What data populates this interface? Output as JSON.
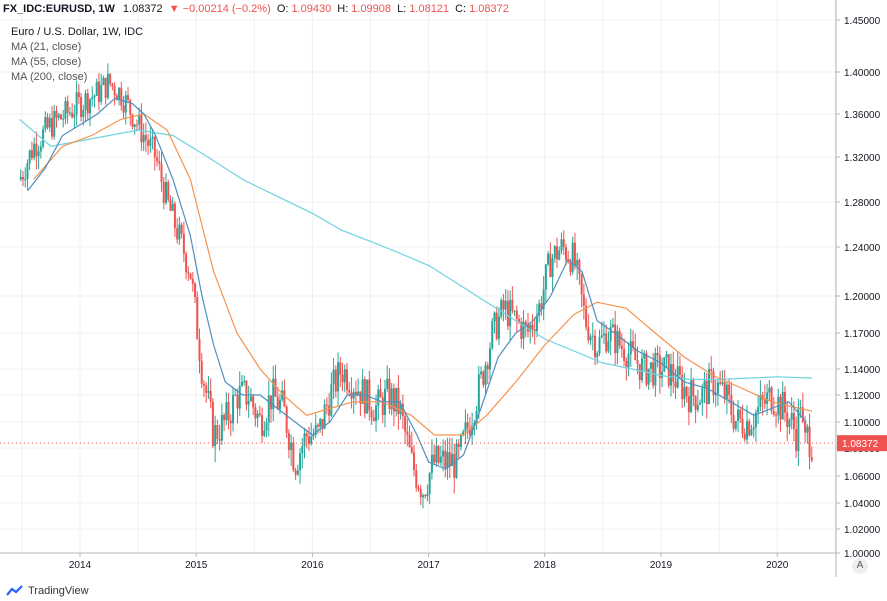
{
  "header": {
    "symbol": "FX_IDC:EURUSD, 1W",
    "price": "1.08372",
    "change": "▼ −0.00214 (−0.2%)",
    "open_label": "O:",
    "open": "1.09430",
    "high_label": "H:",
    "high": "1.09908",
    "low_label": "L:",
    "low": "1.08121",
    "close_label": "C:",
    "close": "1.08372"
  },
  "legend": {
    "title": "Euro / U.S. Dollar, 1W, IDC",
    "ma1": "MA (21, close)",
    "ma2": "MA (55, close)",
    "ma3": "MA (200, close)"
  },
  "brand": "TradingView",
  "auto_button": "A",
  "colors": {
    "up": "#26a69a",
    "down": "#ef5350",
    "ma21": "#4f8fc0",
    "ma55": "#f7934e",
    "ma200": "#6fd3e0",
    "grid": "#eef0f3",
    "axis": "#b2b5be",
    "badge": "#ef5350"
  },
  "chart_data": {
    "type": "candlestick",
    "title": "Euro / U.S. Dollar, 1W, IDC",
    "ylim": [
      1.0,
      1.45
    ],
    "y_ticks": [
      "1.45000",
      "1.40000",
      "1.36000",
      "1.32000",
      "1.28000",
      "1.24000",
      "1.20000",
      "1.17000",
      "1.14000",
      "1.12000",
      "1.10000",
      "1.08000",
      "1.06000",
      "1.04000",
      "1.02000",
      "1.00000"
    ],
    "x_ticks": [
      "2014",
      "2014",
      "2015",
      "2016",
      "2017",
      "2018",
      "2019",
      "2020"
    ],
    "x_tick_years": [
      2014.0,
      2015.0,
      2016.0,
      2017.0,
      2018.0,
      2019.0,
      2020.0
    ],
    "x_tick_labels": [
      "2014",
      "2015",
      "2016",
      "2017",
      "2018",
      "2019",
      "2020"
    ],
    "xlim": [
      2013.48,
      2020.45
    ],
    "last_price_label": "1.08372",
    "last_price": 1.08372,
    "price_path": [
      [
        2013.48,
        1.3
      ],
      [
        2013.6,
        1.33
      ],
      [
        2013.75,
        1.35
      ],
      [
        2013.88,
        1.36
      ],
      [
        2014.0,
        1.37
      ],
      [
        2014.15,
        1.38
      ],
      [
        2014.25,
        1.39
      ],
      [
        2014.35,
        1.38
      ],
      [
        2014.45,
        1.36
      ],
      [
        2014.55,
        1.34
      ],
      [
        2014.65,
        1.32
      ],
      [
        2014.75,
        1.28
      ],
      [
        2014.85,
        1.25
      ],
      [
        2014.95,
        1.22
      ],
      [
        2015.05,
        1.14
      ],
      [
        2015.15,
        1.09
      ],
      [
        2015.25,
        1.1
      ],
      [
        2015.35,
        1.12
      ],
      [
        2015.45,
        1.12
      ],
      [
        2015.55,
        1.1
      ],
      [
        2015.65,
        1.12
      ],
      [
        2015.75,
        1.11
      ],
      [
        2015.85,
        1.07
      ],
      [
        2015.95,
        1.09
      ],
      [
        2016.05,
        1.09
      ],
      [
        2016.15,
        1.12
      ],
      [
        2016.25,
        1.14
      ],
      [
        2016.35,
        1.13
      ],
      [
        2016.45,
        1.12
      ],
      [
        2016.55,
        1.11
      ],
      [
        2016.65,
        1.12
      ],
      [
        2016.75,
        1.11
      ],
      [
        2016.85,
        1.07
      ],
      [
        2016.95,
        1.05
      ],
      [
        2017.05,
        1.07
      ],
      [
        2017.15,
        1.07
      ],
      [
        2017.25,
        1.07
      ],
      [
        2017.35,
        1.1
      ],
      [
        2017.45,
        1.13
      ],
      [
        2017.55,
        1.17
      ],
      [
        2017.65,
        1.19
      ],
      [
        2017.75,
        1.18
      ],
      [
        2017.85,
        1.17
      ],
      [
        2017.95,
        1.19
      ],
      [
        2018.05,
        1.23
      ],
      [
        2018.15,
        1.24
      ],
      [
        2018.25,
        1.23
      ],
      [
        2018.35,
        1.18
      ],
      [
        2018.45,
        1.16
      ],
      [
        2018.55,
        1.17
      ],
      [
        2018.65,
        1.16
      ],
      [
        2018.75,
        1.15
      ],
      [
        2018.85,
        1.14
      ],
      [
        2018.95,
        1.14
      ],
      [
        2019.05,
        1.14
      ],
      [
        2019.15,
        1.13
      ],
      [
        2019.25,
        1.12
      ],
      [
        2019.35,
        1.12
      ],
      [
        2019.45,
        1.13
      ],
      [
        2019.55,
        1.12
      ],
      [
        2019.65,
        1.1
      ],
      [
        2019.75,
        1.1
      ],
      [
        2019.85,
        1.11
      ],
      [
        2019.95,
        1.12
      ],
      [
        2020.05,
        1.11
      ],
      [
        2020.12,
        1.1
      ],
      [
        2020.17,
        1.09
      ],
      [
        2020.2,
        1.12
      ],
      [
        2020.23,
        1.08
      ],
      [
        2020.26,
        1.09
      ],
      [
        2020.3,
        1.08372
      ]
    ],
    "ma_21": [
      [
        2013.55,
        1.29
      ],
      [
        2013.7,
        1.31
      ],
      [
        2013.85,
        1.34
      ],
      [
        2014.0,
        1.35
      ],
      [
        2014.15,
        1.36
      ],
      [
        2014.3,
        1.375
      ],
      [
        2014.45,
        1.37
      ],
      [
        2014.55,
        1.36
      ],
      [
        2014.65,
        1.34
      ],
      [
        2014.8,
        1.3
      ],
      [
        2014.95,
        1.25
      ],
      [
        2015.05,
        1.2
      ],
      [
        2015.15,
        1.16
      ],
      [
        2015.25,
        1.13
      ],
      [
        2015.4,
        1.12
      ],
      [
        2015.55,
        1.12
      ],
      [
        2015.7,
        1.11
      ],
      [
        2015.85,
        1.1
      ],
      [
        2016.0,
        1.09
      ],
      [
        2016.15,
        1.1
      ],
      [
        2016.3,
        1.12
      ],
      [
        2016.45,
        1.12
      ],
      [
        2016.6,
        1.115
      ],
      [
        2016.75,
        1.115
      ],
      [
        2016.9,
        1.09
      ],
      [
        2017.0,
        1.07
      ],
      [
        2017.15,
        1.065
      ],
      [
        2017.3,
        1.075
      ],
      [
        2017.45,
        1.11
      ],
      [
        2017.6,
        1.15
      ],
      [
        2017.75,
        1.17
      ],
      [
        2017.9,
        1.18
      ],
      [
        2018.05,
        1.2
      ],
      [
        2018.2,
        1.23
      ],
      [
        2018.32,
        1.22
      ],
      [
        2018.45,
        1.18
      ],
      [
        2018.6,
        1.17
      ],
      [
        2018.8,
        1.155
      ],
      [
        2019.0,
        1.145
      ],
      [
        2019.2,
        1.13
      ],
      [
        2019.4,
        1.125
      ],
      [
        2019.6,
        1.115
      ],
      [
        2019.8,
        1.105
      ],
      [
        2019.95,
        1.11
      ],
      [
        2020.1,
        1.115
      ],
      [
        2020.25,
        1.1
      ]
    ],
    "ma_55": [
      [
        2013.6,
        1.3
      ],
      [
        2013.85,
        1.33
      ],
      [
        2014.1,
        1.34
      ],
      [
        2014.35,
        1.355
      ],
      [
        2014.55,
        1.36
      ],
      [
        2014.75,
        1.345
      ],
      [
        2014.95,
        1.3
      ],
      [
        2015.15,
        1.22
      ],
      [
        2015.35,
        1.17
      ],
      [
        2015.55,
        1.14
      ],
      [
        2015.75,
        1.12
      ],
      [
        2015.95,
        1.105
      ],
      [
        2016.15,
        1.11
      ],
      [
        2016.35,
        1.115
      ],
      [
        2016.6,
        1.115
      ],
      [
        2016.85,
        1.105
      ],
      [
        2017.05,
        1.09
      ],
      [
        2017.3,
        1.09
      ],
      [
        2017.5,
        1.105
      ],
      [
        2017.75,
        1.13
      ],
      [
        2018.0,
        1.16
      ],
      [
        2018.25,
        1.185
      ],
      [
        2018.45,
        1.195
      ],
      [
        2018.7,
        1.19
      ],
      [
        2018.95,
        1.17
      ],
      [
        2019.2,
        1.15
      ],
      [
        2019.45,
        1.135
      ],
      [
        2019.7,
        1.125
      ],
      [
        2019.95,
        1.115
      ],
      [
        2020.2,
        1.11
      ],
      [
        2020.3,
        1.108
      ]
    ],
    "ma_200": [
      [
        2013.48,
        1.355
      ],
      [
        2013.75,
        1.33
      ],
      [
        2014.0,
        1.335
      ],
      [
        2014.25,
        1.34
      ],
      [
        2014.5,
        1.345
      ],
      [
        2014.8,
        1.34
      ],
      [
        2015.1,
        1.32
      ],
      [
        2015.4,
        1.3
      ],
      [
        2015.7,
        1.285
      ],
      [
        2016.0,
        1.27
      ],
      [
        2016.25,
        1.255
      ],
      [
        2016.5,
        1.245
      ],
      [
        2016.75,
        1.235
      ],
      [
        2017.0,
        1.225
      ],
      [
        2017.25,
        1.21
      ],
      [
        2017.5,
        1.195
      ],
      [
        2017.75,
        1.18
      ],
      [
        2018.0,
        1.165
      ],
      [
        2018.25,
        1.155
      ],
      [
        2018.5,
        1.145
      ],
      [
        2018.75,
        1.14
      ],
      [
        2019.0,
        1.135
      ],
      [
        2019.25,
        1.132
      ],
      [
        2019.5,
        1.132
      ],
      [
        2019.75,
        1.133
      ],
      [
        2020.0,
        1.134
      ],
      [
        2020.3,
        1.133
      ]
    ]
  }
}
